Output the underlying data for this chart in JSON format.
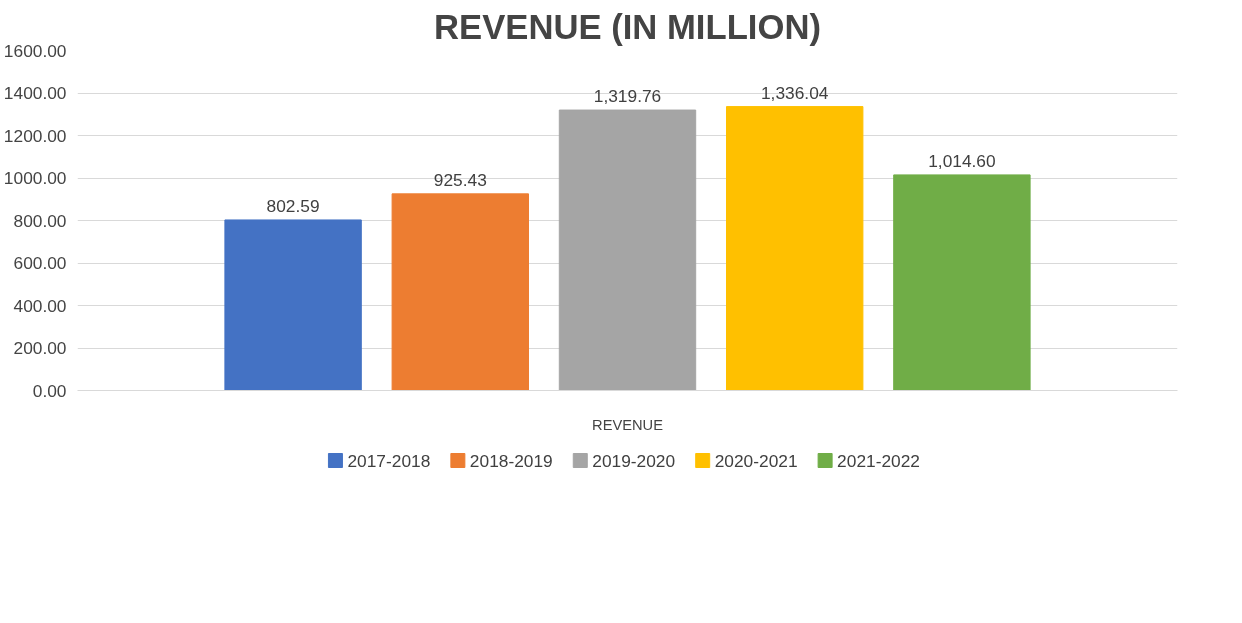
{
  "chart_data": {
    "type": "bar",
    "title": "REVENUE (IN MILLION)",
    "categories": [
      "REVENUE"
    ],
    "series": [
      {
        "name": "2017-2018",
        "color": "#4472c4",
        "values": [
          802.59
        ],
        "value_labels": [
          "802.59"
        ]
      },
      {
        "name": "2018-2019",
        "color": "#ed7d31",
        "values": [
          925.43
        ],
        "value_labels": [
          "925.43"
        ]
      },
      {
        "name": "2019-2020",
        "color": "#a5a5a5",
        "values": [
          1319.76
        ],
        "value_labels": [
          "1,319.76"
        ]
      },
      {
        "name": "2020-2021",
        "color": "#ffc000",
        "values": [
          1336.04
        ],
        "value_labels": [
          "1,336.04"
        ]
      },
      {
        "name": "2021-2022",
        "color": "#70ad47",
        "values": [
          1014.6
        ],
        "value_labels": [
          "1,014.60"
        ]
      }
    ],
    "ylim": [
      0,
      1600
    ],
    "yticks": [
      {
        "value": 0,
        "label": "0.00"
      },
      {
        "value": 200,
        "label": "200.00"
      },
      {
        "value": 400,
        "label": "400.00"
      },
      {
        "value": 600,
        "label": "600.00"
      },
      {
        "value": 800,
        "label": "800.00"
      },
      {
        "value": 1000,
        "label": "1000.00"
      },
      {
        "value": 1200,
        "label": "1200.00"
      },
      {
        "value": 1400,
        "label": "1400.00"
      },
      {
        "value": 1600,
        "label": "1600.00"
      }
    ],
    "grid": "y",
    "legend": "bottom"
  }
}
